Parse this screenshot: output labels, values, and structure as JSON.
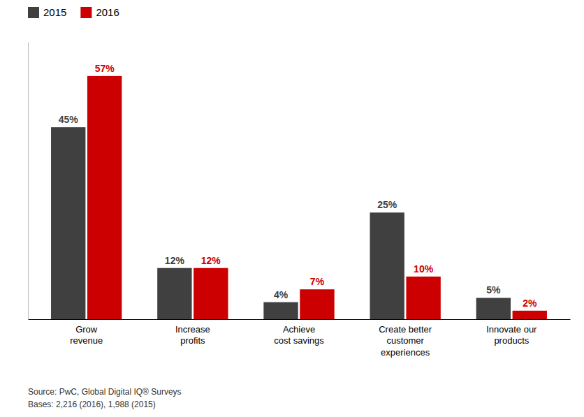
{
  "chart_data": {
    "type": "bar",
    "categories": [
      "Grow\nrevenue",
      "Increase\nprofits",
      "Achieve\ncost savings",
      "Create better\ncustomer\nexperiences",
      "Innovate our\nproducts"
    ],
    "series": [
      {
        "name": "2015",
        "color": "#404040",
        "values": [
          45,
          12,
          4,
          25,
          5
        ],
        "value_labels": [
          "45%",
          "12%",
          "4%",
          "25%",
          "5%"
        ]
      },
      {
        "name": "2016",
        "color": "#cc0000",
        "values": [
          57,
          12,
          7,
          10,
          2
        ],
        "value_labels": [
          "57%",
          "12%",
          "7%",
          "10%",
          "2%"
        ]
      }
    ],
    "ylim": [
      0,
      65
    ],
    "data_labels": true,
    "tick_labels": "x",
    "legend": "upper left",
    "grid": false,
    "annotations": [
      "Source: PwC, Global Digital IQ® Surveys",
      "Bases: 2,216 (2016), 1,988 (2015)"
    ]
  }
}
